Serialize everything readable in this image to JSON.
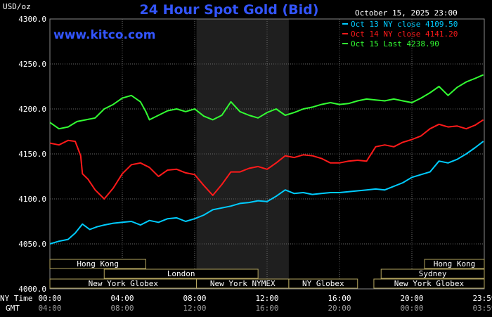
{
  "chart_data": {
    "type": "line",
    "title": "24 Hour Spot Gold (Bid)",
    "watermark": "www.kitco.com",
    "unit_label": "USD/oz",
    "date_label": "October 15, 2025 23:00",
    "ylim": [
      4000,
      4300
    ],
    "y_ticks": [
      "4300.0",
      "4250.0",
      "4200.0",
      "4150.0",
      "4100.0",
      "4050.0",
      "4000.0"
    ],
    "x_ticks_ny": [
      "00:00",
      "04:00",
      "08:00",
      "12:00",
      "16:00",
      "20:00",
      "23:59"
    ],
    "x_ticks_gmt": [
      "04:00",
      "08:00",
      "12:00",
      "16:00",
      "20:00",
      "00:00",
      "03:59"
    ],
    "x_row_label_ny": "NY Time",
    "x_row_label_gmt": "GMT",
    "colors": {
      "oct13": "#00ccff",
      "oct14": "#ff1a1a",
      "oct15": "#33ff33",
      "background": "#000000",
      "grid": "#6a6a6a",
      "axis_text": "#ffffff",
      "title": "#3355ff",
      "shade": "#1f1f1f"
    },
    "legend": [
      {
        "label": "Oct 13 NY close 4109.50",
        "color": "#00ccff"
      },
      {
        "label": "Oct 14 NY close 4141.20",
        "color": "#ff1a1a"
      },
      {
        "label": "Oct 15 Last 4238.90",
        "color": "#33ff33"
      }
    ],
    "sessions": [
      {
        "label": "Hong Kong",
        "start_h": 0,
        "end_h": 5.3,
        "row": 0
      },
      {
        "label": "London",
        "start_h": 3,
        "end_h": 11.5,
        "row": 1
      },
      {
        "label": "New York Globex",
        "start_h": 0,
        "end_h": 8.1,
        "row": 2
      },
      {
        "label": "New York NYMEX",
        "start_h": 8.1,
        "end_h": 13.2,
        "row": 2
      },
      {
        "label": "NY Globex",
        "start_h": 13.2,
        "end_h": 17,
        "row": 2
      },
      {
        "label": "Hong Kong",
        "start_h": 20.7,
        "end_h": 24,
        "row": 0
      },
      {
        "label": "Sydney",
        "start_h": 18.3,
        "end_h": 24,
        "row": 1
      },
      {
        "label": "New York Globex",
        "start_h": 17.9,
        "end_h": 24,
        "row": 2
      }
    ],
    "shaded_range_h": [
      8.1,
      13.2
    ],
    "series": [
      {
        "name": "Oct 13",
        "color": "#00ccff",
        "x": [
          0,
          0.5,
          1,
          1.4,
          1.8,
          2.2,
          2.6,
          3,
          3.5,
          4,
          4.5,
          5,
          5.5,
          6,
          6.5,
          7,
          7.5,
          8,
          8.5,
          9,
          9.5,
          10,
          10.5,
          11,
          11.5,
          12,
          12.5,
          13,
          13.5,
          14,
          14.5,
          15,
          15.5,
          16,
          16.5,
          17,
          17.5,
          18,
          18.5,
          19,
          19.5,
          20,
          20.5,
          21,
          21.5,
          22,
          22.5,
          23,
          23.5,
          23.95
        ],
        "y": [
          4050,
          4053,
          4055,
          4062,
          4072,
          4066,
          4069,
          4071,
          4073,
          4074,
          4075,
          4071,
          4076,
          4074,
          4078,
          4079,
          4075,
          4078,
          4082,
          4088,
          4090,
          4092,
          4095,
          4096,
          4098,
          4097,
          4103,
          4110,
          4106,
          4107,
          4105,
          4106,
          4107,
          4107,
          4108,
          4109,
          4110,
          4111,
          4110,
          4114,
          4118,
          4124,
          4127,
          4130,
          4142,
          4140,
          4144,
          4150,
          4157,
          4164
        ]
      },
      {
        "name": "Oct 14",
        "color": "#ff1a1a",
        "x": [
          0,
          0.5,
          1,
          1.4,
          1.7,
          1.8,
          2.1,
          2.5,
          3,
          3.5,
          4,
          4.5,
          5,
          5.5,
          6,
          6.5,
          7,
          7.5,
          8,
          8.5,
          9,
          9.5,
          10,
          10.5,
          11,
          11.5,
          12,
          12.5,
          13,
          13.5,
          14,
          14.5,
          15,
          15.5,
          16,
          16.5,
          17,
          17.5,
          18,
          18.5,
          19,
          19.5,
          20,
          20.5,
          21,
          21.5,
          22,
          22.5,
          23,
          23.5,
          23.95
        ],
        "y": [
          4162,
          4160,
          4165,
          4164,
          4148,
          4128,
          4122,
          4110,
          4100,
          4112,
          4128,
          4138,
          4140,
          4135,
          4125,
          4132,
          4133,
          4129,
          4127,
          4115,
          4104,
          4116,
          4130,
          4130,
          4134,
          4136,
          4133,
          4140,
          4148,
          4146,
          4149,
          4148,
          4145,
          4140,
          4140,
          4142,
          4143,
          4142,
          4158,
          4160,
          4158,
          4163,
          4166,
          4170,
          4178,
          4183,
          4180,
          4181,
          4178,
          4182,
          4188
        ]
      },
      {
        "name": "Oct 15",
        "color": "#33ff33",
        "x": [
          0,
          0.5,
          1,
          1.5,
          2,
          2.5,
          3,
          3.5,
          4,
          4.5,
          5,
          5.3,
          5.5,
          6,
          6.5,
          7,
          7.5,
          8,
          8.5,
          9,
          9.5,
          10,
          10.5,
          11,
          11.5,
          12,
          12.5,
          13,
          13.5,
          14,
          14.5,
          15,
          15.5,
          16,
          16.5,
          17,
          17.5,
          18,
          18.5,
          19,
          19.5,
          20,
          20.5,
          21,
          21.5,
          22,
          22.5,
          23,
          23.5,
          23.95
        ],
        "y": [
          4185,
          4178,
          4180,
          4186,
          4188,
          4190,
          4200,
          4205,
          4212,
          4215,
          4208,
          4197,
          4188,
          4193,
          4198,
          4200,
          4197,
          4200,
          4192,
          4188,
          4193,
          4208,
          4197,
          4193,
          4190,
          4196,
          4200,
          4193,
          4196,
          4200,
          4202,
          4205,
          4207,
          4205,
          4206,
          4209,
          4211,
          4210,
          4209,
          4211,
          4209,
          4207,
          4212,
          4218,
          4225,
          4215,
          4224,
          4230,
          4234,
          4238
        ]
      }
    ]
  }
}
